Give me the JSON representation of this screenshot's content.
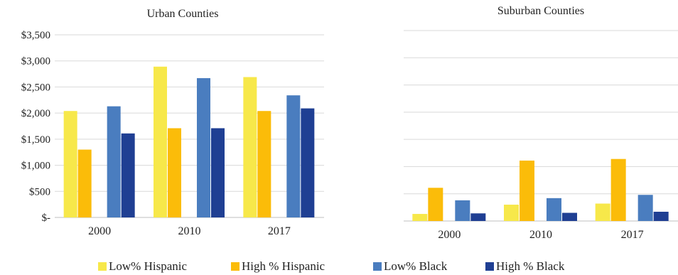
{
  "colors": {
    "low_hispanic": "#f7e84a",
    "high_hispanic": "#fbbc09",
    "low_black": "#4a7dbf",
    "high_black": "#1f3f93",
    "grid": "#d9d9d9",
    "axis": "#bfbfbf"
  },
  "chart_data": [
    {
      "type": "bar",
      "title": "Urban Counties",
      "categories": [
        "2000",
        "2010",
        "2017"
      ],
      "ylim": [
        0,
        3500
      ],
      "yticks": [
        0,
        500,
        1000,
        1500,
        2000,
        2500,
        3000,
        3500
      ],
      "ytick_labels": [
        "$-",
        "$500",
        "$1,000",
        "$1,500",
        "$2,000",
        "$2,500",
        "$3,000",
        "$3,500"
      ],
      "grid": true,
      "series": [
        {
          "name": "Low% Hispanic",
          "color": "#f7e84a",
          "values": [
            2040,
            2890,
            2690
          ]
        },
        {
          "name": "High % Hispanic",
          "color": "#fbbc09",
          "values": [
            1300,
            1710,
            2040
          ]
        },
        {
          "name": "Low% Black",
          "color": "#4a7dbf",
          "values": [
            2130,
            2670,
            2340
          ]
        },
        {
          "name": "High % Black",
          "color": "#1f3f93",
          "values": [
            1610,
            1710,
            2090
          ]
        }
      ]
    },
    {
      "type": "bar",
      "title": "Suburban Counties",
      "categories": [
        "2000",
        "2010",
        "2017"
      ],
      "ylim": [
        0,
        3500
      ],
      "grid": true,
      "series": [
        {
          "name": "Low% Hispanic",
          "color": "#f7e84a",
          "values": [
            130,
            300,
            320
          ]
        },
        {
          "name": "High % Hispanic",
          "color": "#fbbc09",
          "values": [
            610,
            1110,
            1140
          ]
        },
        {
          "name": "Low% Black",
          "color": "#4a7dbf",
          "values": [
            380,
            420,
            480
          ]
        },
        {
          "name": "High % Black",
          "color": "#1f3f93",
          "values": [
            140,
            150,
            170
          ]
        }
      ]
    }
  ],
  "legend": {
    "items": [
      {
        "label": "Low% Hispanic",
        "color": "#f7e84a"
      },
      {
        "label": "High % Hispanic",
        "color": "#fbbc09"
      },
      {
        "label": "Low% Black",
        "color": "#4a7dbf"
      },
      {
        "label": "High % Black",
        "color": "#1f3f93"
      }
    ]
  }
}
